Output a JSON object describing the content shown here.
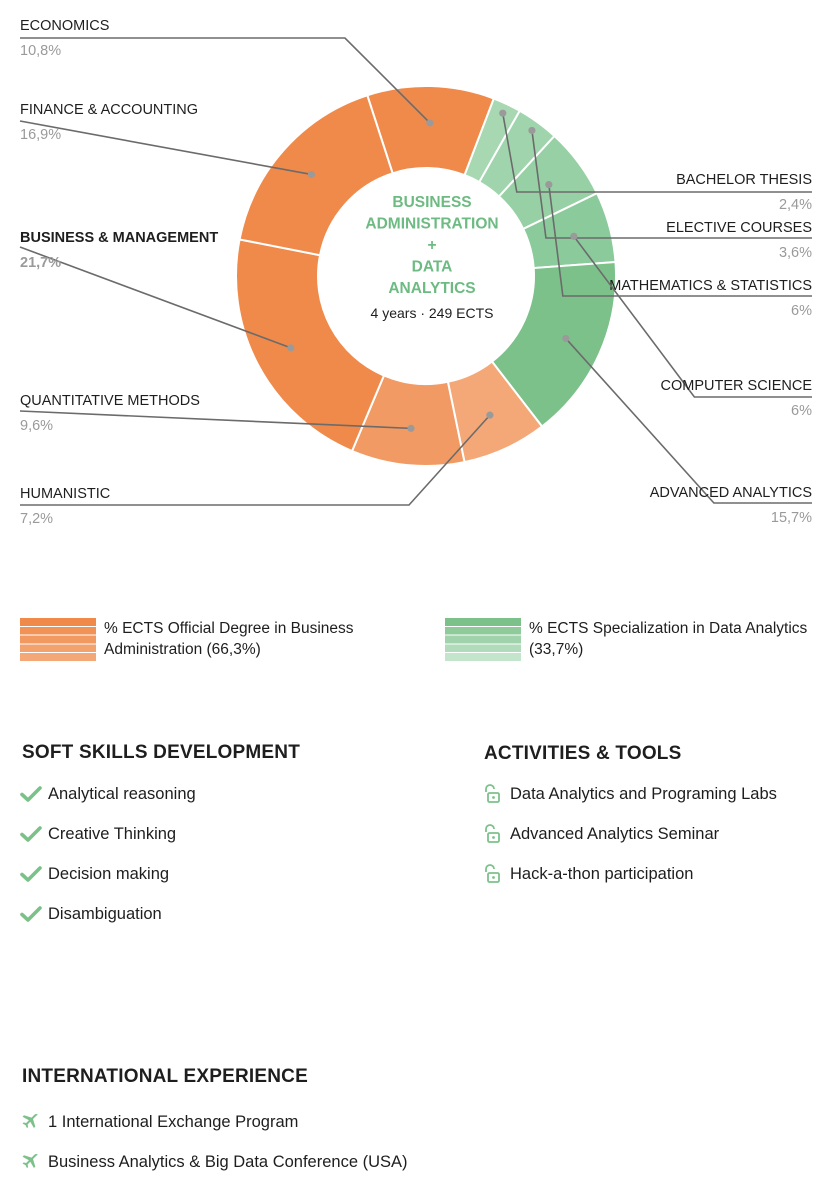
{
  "chart_data": {
    "type": "pie",
    "center": {
      "title_lines": [
        "BUSINESS",
        "ADMINISTRATION",
        "+",
        "DATA",
        "ANALYTICS"
      ],
      "subtitle": "4 years · 249 ECTS"
    },
    "slices": [
      {
        "label": "ECONOMICS",
        "value_label": "10,8%",
        "value": 10.8,
        "group": "official",
        "color": "#f08a4b",
        "bold": false
      },
      {
        "label": "BACHELOR THESIS",
        "value_label": "2,4%",
        "value": 2.4,
        "group": "specialization",
        "color": "#a7d8b2",
        "bold": false
      },
      {
        "label": "ELECTIVE COURSES",
        "value_label": "3,6%",
        "value": 3.6,
        "group": "specialization",
        "color": "#a0d4ad",
        "bold": false
      },
      {
        "label": "MATHEMATICS & STATISTICS",
        "value_label": "6%",
        "value": 6,
        "group": "specialization",
        "color": "#97d0a4",
        "bold": false
      },
      {
        "label": "COMPUTER SCIENCE",
        "value_label": "6%",
        "value": 6,
        "group": "specialization",
        "color": "#8bca9b",
        "bold": false
      },
      {
        "label": "ADVANCED ANALYTICS",
        "value_label": "15,7%",
        "value": 15.7,
        "group": "specialization",
        "color": "#7cc18a",
        "bold": false
      },
      {
        "label": "HUMANISTIC",
        "value_label": "7,2%",
        "value": 7.2,
        "group": "official",
        "color": "#f4a878",
        "bold": false
      },
      {
        "label": "QUANTITATIVE METHODS",
        "value_label": "9,6%",
        "value": 9.6,
        "group": "official",
        "color": "#f29a63",
        "bold": false
      },
      {
        "label": "BUSINESS & MANAGEMENT",
        "value_label": "21,7%",
        "value": 21.7,
        "group": "official",
        "color": "#f08a4b",
        "bold": true
      },
      {
        "label": "FINANCE & ACCOUNTING",
        "value_label": "16,9%",
        "value": 16.9,
        "group": "official",
        "color": "#f08a4b",
        "bold": false
      }
    ],
    "legend": [
      {
        "text": "% ECTS Official Degree in Business Administration (66,3%)",
        "colors": [
          "#f08a4b",
          "#f4a878"
        ]
      },
      {
        "text": "% ECTS Specialization in Data Analytics (33,7%)",
        "colors": [
          "#7cc18a",
          "#c3e5cb"
        ]
      }
    ]
  },
  "soft_skills": {
    "title": "SOFT SKILLS DEVELOPMENT",
    "icon": "check-icon",
    "items": [
      "Analytical reasoning",
      "Creative Thinking",
      "Decision making",
      "Disambiguation"
    ]
  },
  "activities": {
    "title": "ACTIVITIES & TOOLS",
    "icon": "unlocked-padlock-icon",
    "items": [
      "Data Analytics and Programing Labs",
      "Advanced Analytics Seminar",
      "Hack-a-thon participation"
    ]
  },
  "international": {
    "title": "INTERNATIONAL EXPERIENCE",
    "icon": "airplane-icon",
    "items": [
      "1 International Exchange Program",
      "Business Analytics & Big Data Conference (USA)"
    ]
  },
  "colors": {
    "orange": "#f08a4b",
    "green": "#7cc18a",
    "center_title": "#6dbb82",
    "leader_line": "#6b6b6b",
    "value_gray": "#9a9a9a"
  }
}
